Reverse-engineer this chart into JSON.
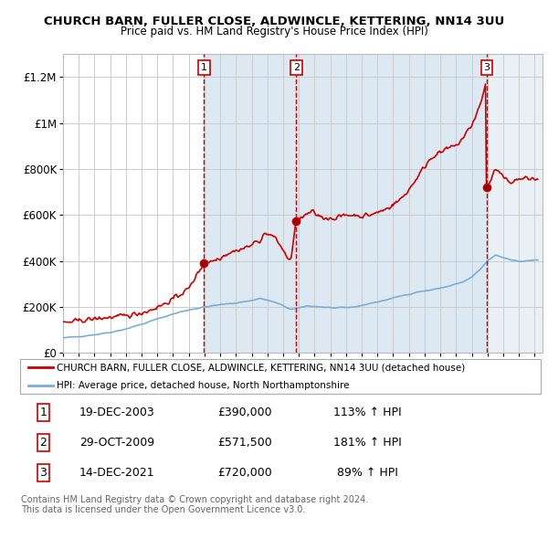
{
  "title": "CHURCH BARN, FULLER CLOSE, ALDWINCLE, KETTERING, NN14 3UU",
  "subtitle": "Price paid vs. HM Land Registry's House Price Index (HPI)",
  "ylim": [
    0,
    1300000
  ],
  "yticks": [
    0,
    200000,
    400000,
    600000,
    800000,
    1000000,
    1200000
  ],
  "ytick_labels": [
    "£0",
    "£200K",
    "£400K",
    "£600K",
    "£800K",
    "£1M",
    "£1.2M"
  ],
  "sale_dates": [
    2003.97,
    2009.83,
    2021.96
  ],
  "sale_prices": [
    390000,
    571500,
    720000
  ],
  "sale_labels": [
    "1",
    "2",
    "3"
  ],
  "property_color": "#cc0000",
  "hpi_color": "#7aaed6",
  "legend_entries": [
    "CHURCH BARN, FULLER CLOSE, ALDWINCLE, KETTERING, NN14 3UU (detached house)",
    "HPI: Average price, detached house, North Northamptonshire"
  ],
  "table_data": [
    [
      "1",
      "19-DEC-2003",
      "£390,000",
      "113% ↑ HPI"
    ],
    [
      "2",
      "29-OCT-2009",
      "£571,500",
      "181% ↑ HPI"
    ],
    [
      "3",
      "14-DEC-2021",
      "£720,000",
      " 89% ↑ HPI"
    ]
  ],
  "footnote": "Contains HM Land Registry data © Crown copyright and database right 2024.\nThis data is licensed under the Open Government Licence v3.0.",
  "xmin": 1995,
  "xmax": 2025.5
}
